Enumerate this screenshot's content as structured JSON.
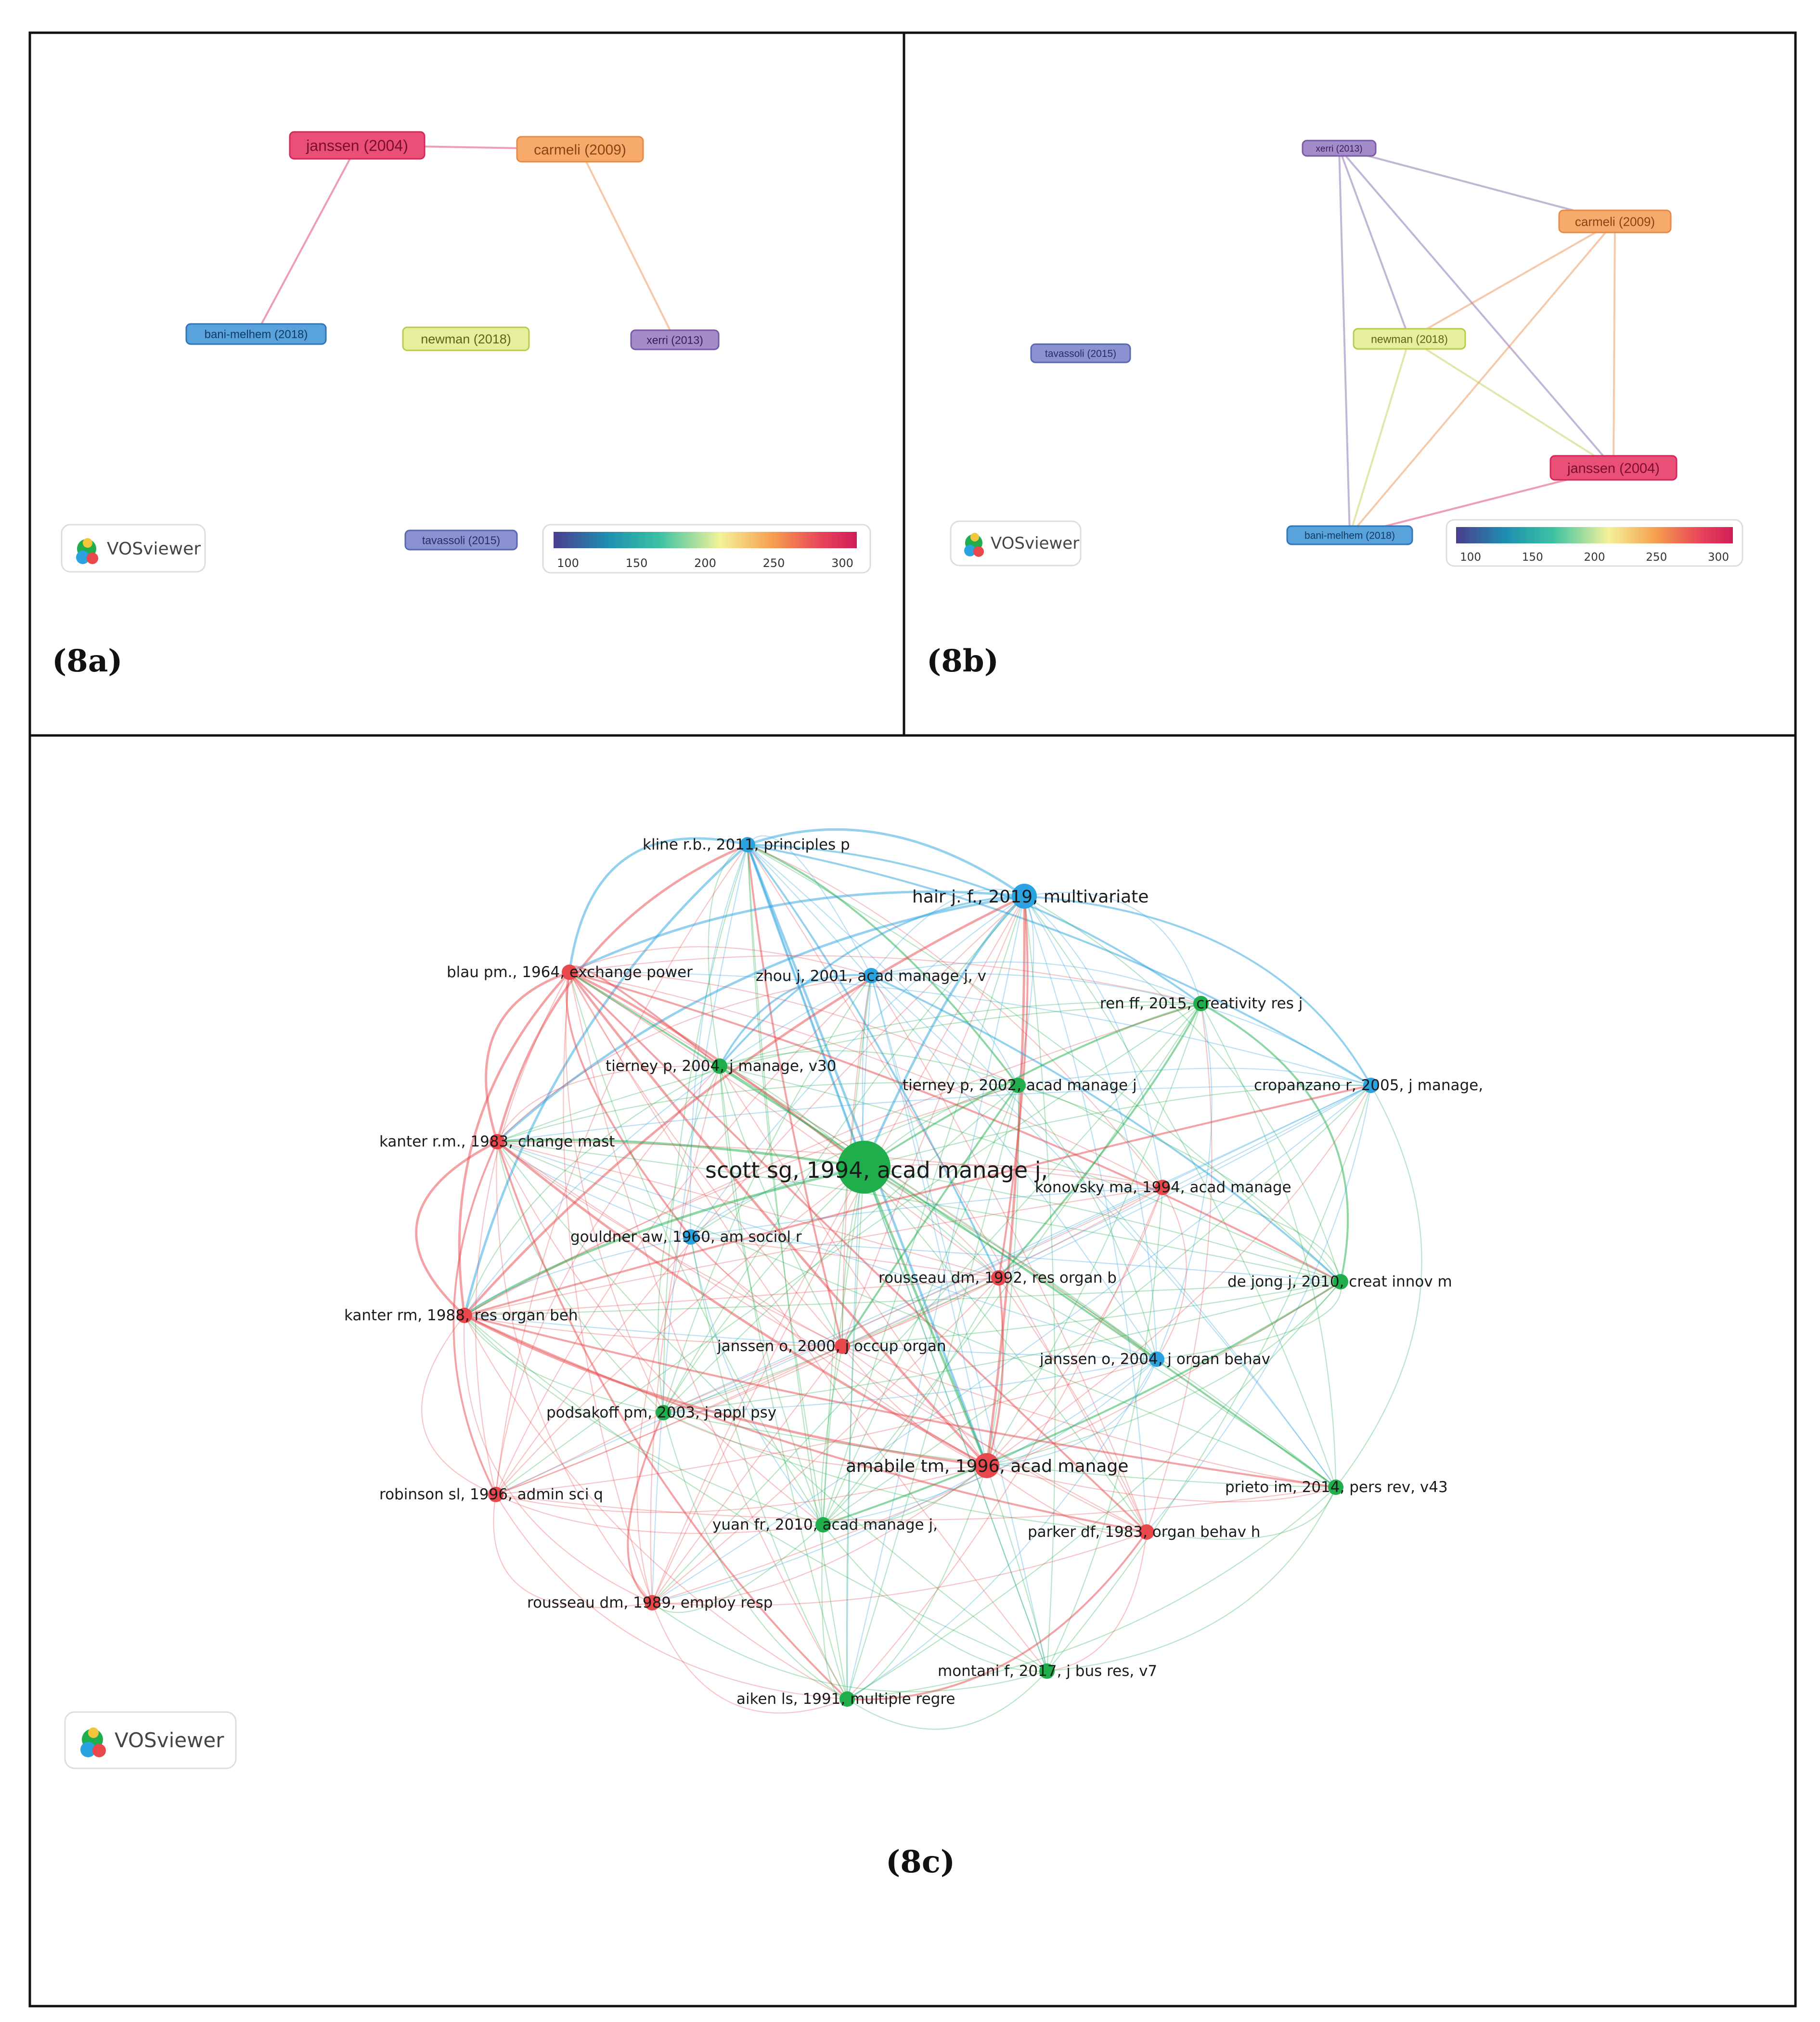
{
  "panels": {
    "a": {
      "label": "(8a)",
      "nodes": [
        {
          "id": "janssen",
          "text": "janssen (2004)",
          "color": "#d6275a",
          "fill": "#ea4f78",
          "textColor": "#7a0f2c"
        },
        {
          "id": "carmeli",
          "text": "carmeli (2009)",
          "color": "#e88a45",
          "fill": "#f6ab6d",
          "textColor": "#8a4413"
        },
        {
          "id": "bani",
          "text": "bani-melhem (2018)",
          "color": "#2f76b9",
          "fill": "#5aa2dc",
          "textColor": "#123a60"
        },
        {
          "id": "newman",
          "text": "newman (2018)",
          "color": "#bcc94a",
          "fill": "#e6ef9c",
          "textColor": "#5a6515"
        },
        {
          "id": "xerri",
          "text": "xerri (2013)",
          "color": "#7b5aa5",
          "fill": "#a48ccb",
          "textColor": "#34214f"
        },
        {
          "id": "tavassoli",
          "text": "tavassoli (2015)",
          "color": "#5a66ad",
          "fill": "#8a92d2",
          "textColor": "#252e62"
        }
      ],
      "links": [
        [
          "janssen",
          "carmeli"
        ],
        [
          "janssen",
          "bani"
        ],
        [
          "carmeli",
          "xerri"
        ]
      ],
      "colorbar": {
        "ticks": [
          "100",
          "150",
          "200",
          "250",
          "300"
        ]
      },
      "logo": "VOSviewer"
    },
    "b": {
      "label": "(8b)",
      "nodes": [
        {
          "id": "xerri",
          "text": "xerri (2013)",
          "color": "#7b5aa5",
          "fill": "#a48ccb",
          "textColor": "#34214f"
        },
        {
          "id": "carmeli",
          "text": "carmeli (2009)",
          "color": "#e88a45",
          "fill": "#f6ab6d",
          "textColor": "#8a4413"
        },
        {
          "id": "tavassoli",
          "text": "tavassoli (2015)",
          "color": "#5a66ad",
          "fill": "#8a92d2",
          "textColor": "#252e62"
        },
        {
          "id": "newman",
          "text": "newman (2018)",
          "color": "#bcc94a",
          "fill": "#e6ef9c",
          "textColor": "#5a6515"
        },
        {
          "id": "janssen",
          "text": "janssen (2004)",
          "color": "#d6275a",
          "fill": "#ea4f78",
          "textColor": "#7a0f2c"
        },
        {
          "id": "bani",
          "text": "bani-melhem (2018)",
          "color": "#2f76b9",
          "fill": "#5aa2dc",
          "textColor": "#123a60"
        }
      ],
      "links": [
        [
          "xerri",
          "carmeli"
        ],
        [
          "xerri",
          "janssen"
        ],
        [
          "xerri",
          "bani"
        ],
        [
          "xerri",
          "newman"
        ],
        [
          "carmeli",
          "janssen"
        ],
        [
          "carmeli",
          "bani"
        ],
        [
          "carmeli",
          "newman"
        ],
        [
          "newman",
          "janssen"
        ],
        [
          "newman",
          "bani"
        ],
        [
          "janssen",
          "bani"
        ]
      ],
      "colorbar": {
        "ticks": [
          "100",
          "150",
          "200",
          "250",
          "300"
        ]
      },
      "logo": "VOSviewer"
    },
    "c": {
      "label": "(8c)",
      "logo": "VOSviewer",
      "colors": {
        "red": "#e8474b",
        "green": "#1fae4b",
        "blue": "#2aa3e0"
      },
      "nodes": [
        {
          "id": "kline",
          "text": "kline r.b., 2011, principles p",
          "cluster": "blue",
          "size": "s"
        },
        {
          "id": "hair",
          "text": "hair j. f., 2019, multivariate",
          "cluster": "blue",
          "size": "m"
        },
        {
          "id": "blau",
          "text": "blau pm., 1964, exchange power",
          "cluster": "red",
          "size": "s"
        },
        {
          "id": "zhou",
          "text": "zhou j, 2001, acad manage j, v",
          "cluster": "blue",
          "size": "s"
        },
        {
          "id": "renff",
          "text": "ren ff, 2015, creativity res j",
          "cluster": "green",
          "size": "s"
        },
        {
          "id": "tierney04",
          "text": "tierney p, 2004, j manage, v30",
          "cluster": "green",
          "size": "s"
        },
        {
          "id": "tierney02",
          "text": "tierney p, 2002, acad manage j",
          "cluster": "green",
          "size": "s"
        },
        {
          "id": "cropanzano",
          "text": "cropanzano r, 2005, j manage,",
          "cluster": "blue",
          "size": "s"
        },
        {
          "id": "kanter83",
          "text": "kanter r.m., 1983, change mast",
          "cluster": "red",
          "size": "s"
        },
        {
          "id": "scott",
          "text": "scott sg, 1994, acad manage j,",
          "cluster": "green",
          "size": "xl"
        },
        {
          "id": "konovsky",
          "text": "konovsky ma, 1994, acad manage",
          "cluster": "red",
          "size": "s"
        },
        {
          "id": "gouldner",
          "text": "gouldner aw, 1960, am sociol r",
          "cluster": "blue",
          "size": "s"
        },
        {
          "id": "rousseau92",
          "text": "rousseau dm, 1992, res organ b",
          "cluster": "red",
          "size": "s"
        },
        {
          "id": "dejong",
          "text": "de jong j, 2010, creat innov m",
          "cluster": "green",
          "size": "s"
        },
        {
          "id": "kanter88",
          "text": "kanter rm, 1988, res organ beh",
          "cluster": "red",
          "size": "s"
        },
        {
          "id": "janssen00",
          "text": "janssen o, 2000, j occup organ",
          "cluster": "red",
          "size": "s"
        },
        {
          "id": "janssen04",
          "text": "janssen o, 2004, j organ behav",
          "cluster": "blue",
          "size": "s"
        },
        {
          "id": "podsakoff",
          "text": "podsakoff pm, 2003, j appl psy",
          "cluster": "green",
          "size": "s"
        },
        {
          "id": "amabile",
          "text": "amabile tm, 1996, acad manage",
          "cluster": "red",
          "size": "m"
        },
        {
          "id": "prieto",
          "text": "prieto im, 2014, pers rev, v43",
          "cluster": "green",
          "size": "s"
        },
        {
          "id": "robinson",
          "text": "robinson sl, 1996, admin sci q",
          "cluster": "red",
          "size": "s"
        },
        {
          "id": "yuan",
          "text": "yuan fr, 2010, acad manage j,",
          "cluster": "green",
          "size": "s"
        },
        {
          "id": "parker",
          "text": "parker df, 1983, organ behav h",
          "cluster": "red",
          "size": "s"
        },
        {
          "id": "rousseau89",
          "text": "rousseau dm, 1989, employ resp",
          "cluster": "red",
          "size": "s"
        },
        {
          "id": "montani",
          "text": "montani f, 2017, j bus res, v7",
          "cluster": "green",
          "size": "s"
        },
        {
          "id": "aiken",
          "text": "aiken ls, 1991, multiple regre",
          "cluster": "green",
          "size": "s"
        }
      ]
    }
  }
}
